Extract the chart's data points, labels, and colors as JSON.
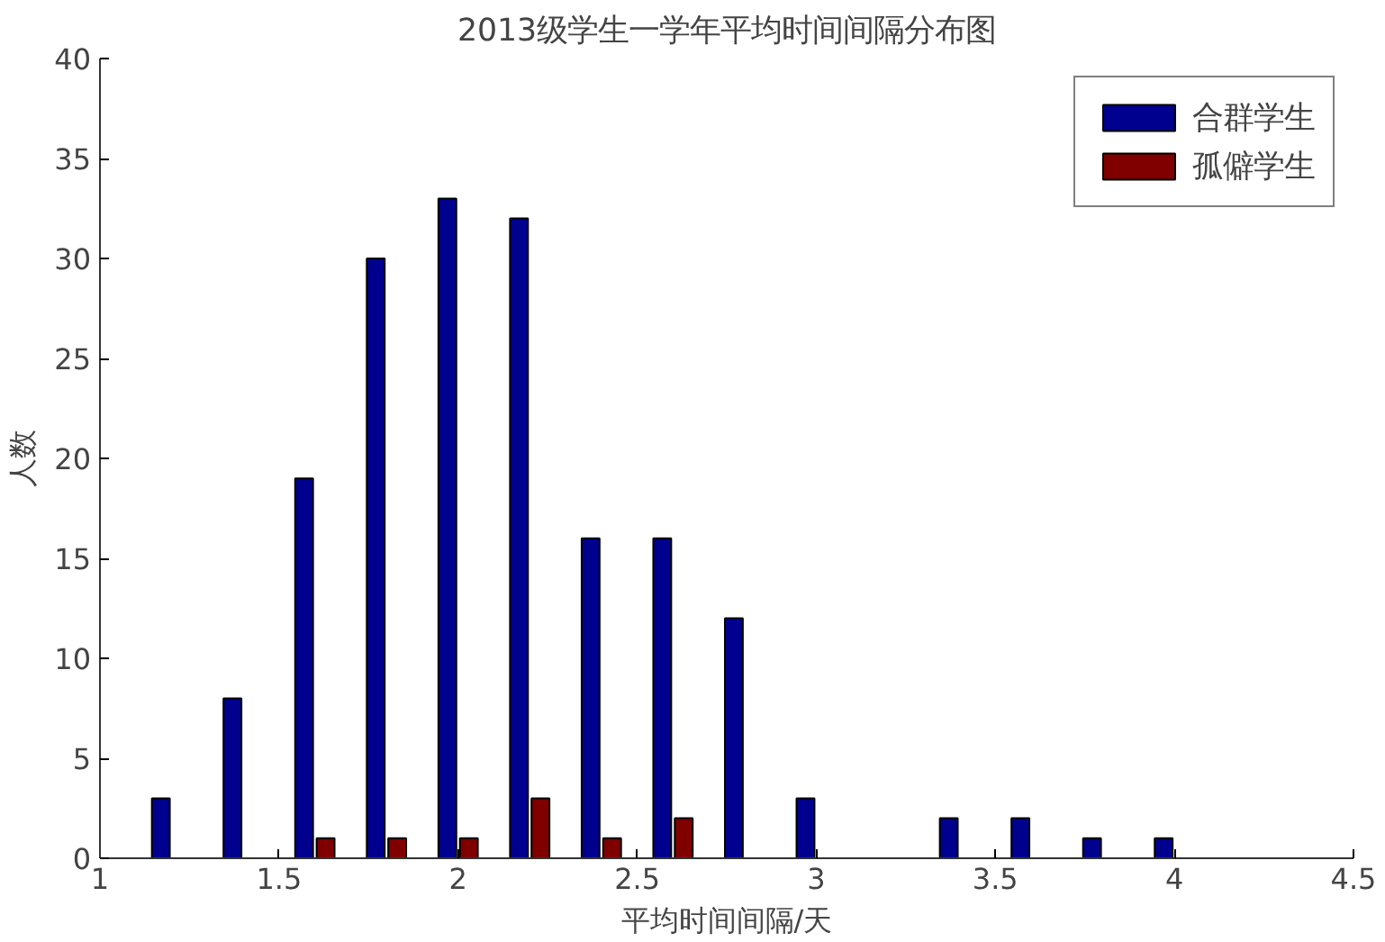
{
  "chart_data": {
    "type": "bar",
    "title": "2013级学生一学年平均时间间隔分布图",
    "xlabel": "平均时间间隔/天",
    "ylabel": "人数",
    "xlim": [
      1,
      4.5
    ],
    "xticks": [
      1,
      1.5,
      2,
      2.5,
      3,
      3.5,
      4,
      4.5
    ],
    "ylim": [
      0,
      40
    ],
    "yticks": [
      0,
      5,
      10,
      15,
      20,
      25,
      30,
      35,
      40
    ],
    "series": [
      {
        "name": "合群学生",
        "color": "#00008f",
        "x": [
          1.17,
          1.37,
          1.57,
          1.77,
          1.97,
          2.17,
          2.37,
          2.57,
          2.77,
          2.97,
          3.37,
          3.57,
          3.77,
          3.97
        ],
        "values": [
          3,
          8,
          19,
          30,
          33,
          32,
          16,
          16,
          12,
          3,
          2,
          2,
          1,
          1
        ]
      },
      {
        "name": "孤僻学生",
        "color": "#800000",
        "x": [
          1.63,
          1.83,
          2.03,
          2.23,
          2.43,
          2.63
        ],
        "values": [
          1,
          1,
          1,
          3,
          1,
          2
        ]
      }
    ],
    "legend": "top right",
    "grid": false
  }
}
